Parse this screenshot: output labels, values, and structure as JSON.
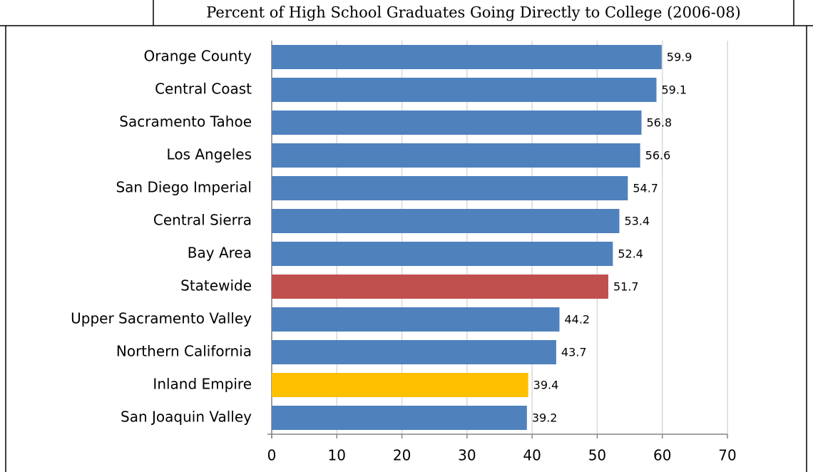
{
  "chart_data": {
    "type": "barh",
    "title": "Percent of High School Graduates Going Directly to College (2006-08)",
    "categories": [
      "Orange County",
      "Central Coast",
      "Sacramento Tahoe",
      "Los Angeles",
      "San Diego Imperial",
      "Central Sierra",
      "Bay Area",
      "Statewide",
      "Upper Sacramento Valley",
      "Northern California",
      "Inland Empire",
      "San Joaquin Valley"
    ],
    "values": [
      59.9,
      59.1,
      56.8,
      56.6,
      54.7,
      53.4,
      52.4,
      51.7,
      44.2,
      43.7,
      39.4,
      39.2
    ],
    "colors": [
      "#4f81bd",
      "#4f81bd",
      "#4f81bd",
      "#4f81bd",
      "#4f81bd",
      "#4f81bd",
      "#4f81bd",
      "#c0504d",
      "#4f81bd",
      "#4f81bd",
      "#ffc000",
      "#4f81bd"
    ],
    "xlim": [
      0,
      70
    ],
    "xticks": [
      0,
      10,
      20,
      30,
      40,
      50,
      60,
      70
    ],
    "grid": true
  }
}
